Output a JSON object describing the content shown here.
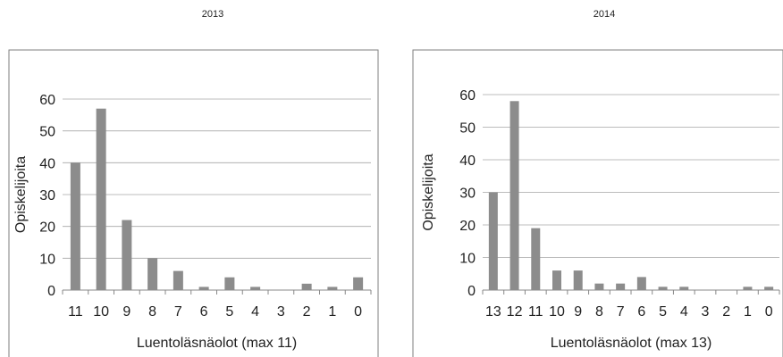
{
  "captions": {
    "left": "2013",
    "right": "2014"
  },
  "chart_data": [
    {
      "type": "bar",
      "title": "2013",
      "xlabel": "Luentoläsnäolot (max 11)",
      "ylabel": "Opiskelijoita",
      "ylim": [
        0,
        60
      ],
      "yticks": [
        0,
        10,
        20,
        30,
        40,
        50,
        60
      ],
      "grid": true,
      "color": "#8c8c8c",
      "categories": [
        "11",
        "10",
        "9",
        "8",
        "7",
        "6",
        "5",
        "4",
        "3",
        "2",
        "1",
        "0"
      ],
      "values": [
        40,
        57,
        22,
        10,
        6,
        1,
        4,
        1,
        0,
        2,
        1,
        4
      ]
    },
    {
      "type": "bar",
      "title": "2014",
      "xlabel": "Luentoläsnäolot (max 13)",
      "ylabel": "Opiskelijoita",
      "ylim": [
        0,
        60
      ],
      "yticks": [
        0,
        10,
        20,
        30,
        40,
        50,
        60
      ],
      "grid": true,
      "color": "#8c8c8c",
      "categories": [
        "13",
        "12",
        "11",
        "10",
        "9",
        "8",
        "7",
        "6",
        "5",
        "4",
        "3",
        "2",
        "1",
        "0"
      ],
      "values": [
        30,
        58,
        19,
        6,
        6,
        2,
        2,
        4,
        1,
        1,
        0,
        0,
        1,
        1
      ]
    }
  ]
}
